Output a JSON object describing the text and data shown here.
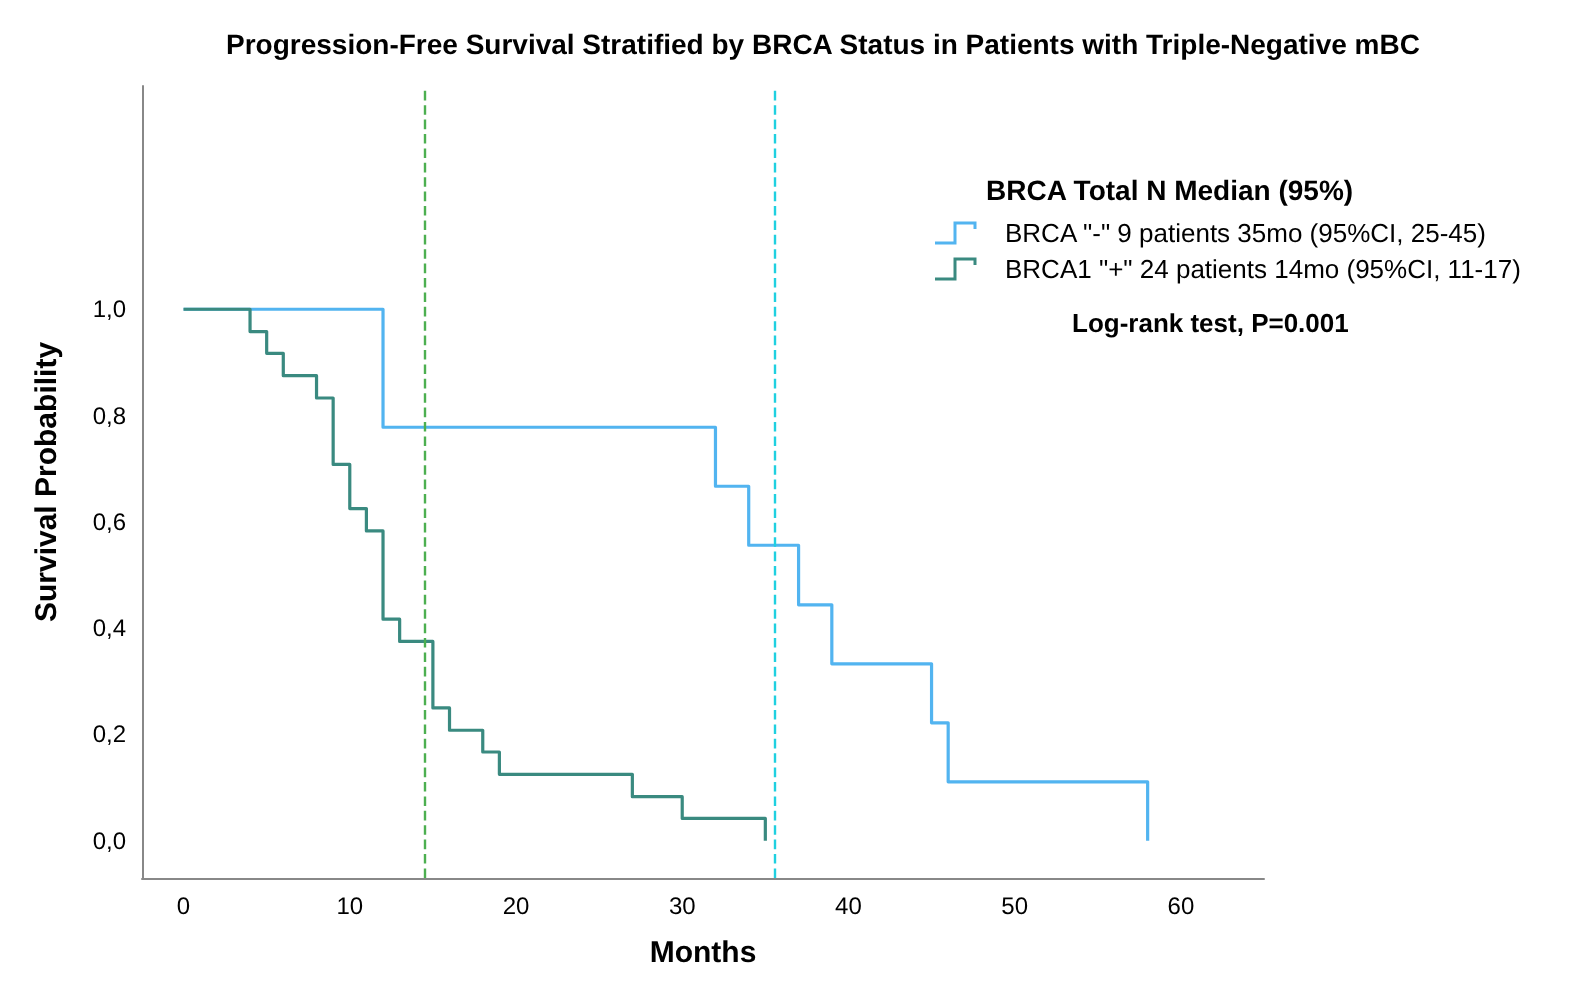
{
  "chart_data": {
    "type": "step",
    "title": "Progression-Free Survival Stratified by BRCA Status in Patients with Triple-Negative mBC",
    "xlabel": "Months",
    "ylabel": "Survival Probability",
    "legend_title": "BRCA Total N Median (95%)",
    "annotations": [
      "Log-rank test, P=0.001"
    ],
    "series": [
      {
        "name": "BRCA \"-\" 9 patients 35mo (95%CI, 25-45)",
        "color": "#52b4f0",
        "x": [
          0,
          12,
          32,
          34,
          37,
          39,
          45,
          46,
          58
        ],
        "values": [
          1.0,
          0.778,
          0.667,
          0.556,
          0.444,
          0.333,
          0.222,
          0.111,
          0.0
        ]
      },
      {
        "name": "BRCA1 \"+\" 24 patients 14mo (95%CI, 11-17)",
        "color": "#3a8a80",
        "x": [
          0,
          4,
          5,
          6,
          8,
          9,
          10,
          11,
          12,
          13,
          15,
          16,
          18,
          19,
          27,
          30,
          35
        ],
        "values": [
          1.0,
          0.958,
          0.917,
          0.875,
          0.833,
          0.708,
          0.625,
          0.583,
          0.417,
          0.375,
          0.25,
          0.208,
          0.167,
          0.125,
          0.083,
          0.042,
          0.0
        ]
      }
    ],
    "ref_lines": [
      {
        "axis": "x",
        "value": 14.5,
        "color": "#4caf50",
        "line_style": "dashed"
      },
      {
        "axis": "x",
        "value": 35.5,
        "color": "#1fd0e0",
        "line_style": "dashed"
      }
    ],
    "xlim": [
      -2.5,
      65
    ],
    "xticks": [
      0,
      10,
      20,
      30,
      40,
      50,
      60
    ],
    "ylim": [
      -0.07,
      1.42
    ],
    "yticks": [
      {
        "value": 0,
        "label": "0,0"
      },
      {
        "value": 0.2,
        "label": "0,2"
      },
      {
        "value": 0.4,
        "label": "0,4"
      },
      {
        "value": 0.6,
        "label": "0,6"
      },
      {
        "value": 0.8,
        "label": "0,8"
      },
      {
        "value": 1.0,
        "label": "1,0"
      }
    ],
    "grid": false,
    "legend": "top right",
    "marker": "none",
    "line_style": "solid"
  }
}
